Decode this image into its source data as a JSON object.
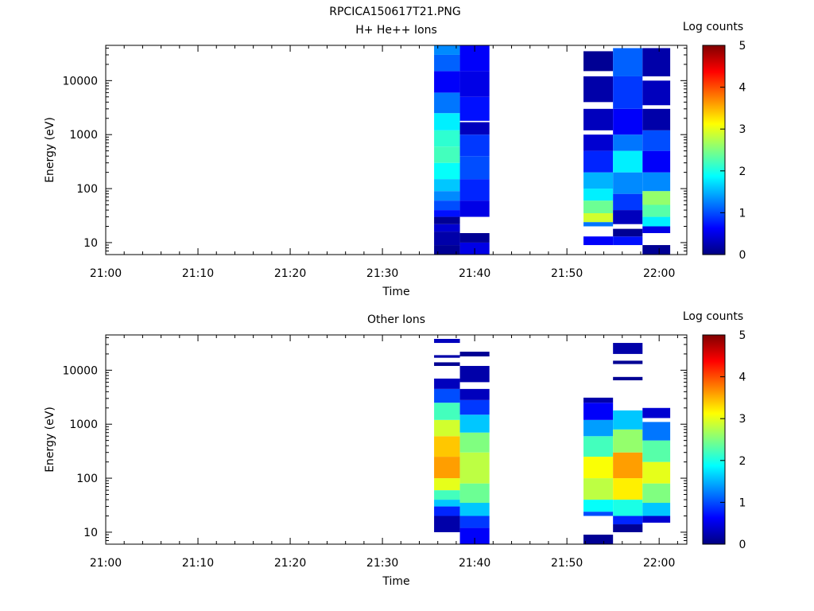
{
  "figure": {
    "filename": "RPCICA150617T21.PNG"
  },
  "colorscale": {
    "stops": [
      "#000080",
      "#0000ff",
      "#0080ff",
      "#00ffff",
      "#80ff80",
      "#ffff00",
      "#ff8000",
      "#ff0000",
      "#800000"
    ]
  },
  "chart_data": [
    {
      "type": "heatmap",
      "title": "H+ He++ Ions",
      "xlabel": "Time",
      "ylabel": "Energy (eV)",
      "colorbar_label": "Log counts",
      "colorbar_range": [
        0,
        5
      ],
      "colorbar_ticks": [
        "0",
        "1",
        "2",
        "3",
        "4",
        "5"
      ],
      "x_ticks": [
        "21:00",
        "21:10",
        "21:20",
        "21:30",
        "21:40",
        "21:50",
        "22:00"
      ],
      "x_range": [
        "21:00",
        "22:03"
      ],
      "y_scale": "log",
      "y_range": [
        6,
        45000
      ],
      "y_ticks": [
        "10",
        "100",
        "1000",
        "10000"
      ],
      "columns": [
        {
          "t_start": "21:35.6",
          "t_end": "21:38.4",
          "bins": [
            {
              "e_min": 6,
              "e_max": 9,
              "value": 0.1
            },
            {
              "e_min": 9,
              "e_max": 16,
              "value": 0.2
            },
            {
              "e_min": 16,
              "e_max": 22,
              "value": 0.4
            },
            {
              "e_min": 22,
              "e_max": 30,
              "value": 0.1
            },
            {
              "e_min": 30,
              "e_max": 40,
              "value": 0.7
            },
            {
              "e_min": 40,
              "e_max": 60,
              "value": 1.0
            },
            {
              "e_min": 60,
              "e_max": 90,
              "value": 1.3
            },
            {
              "e_min": 90,
              "e_max": 150,
              "value": 1.6
            },
            {
              "e_min": 150,
              "e_max": 300,
              "value": 1.9
            },
            {
              "e_min": 300,
              "e_max": 600,
              "value": 2.2
            },
            {
              "e_min": 600,
              "e_max": 1200,
              "value": 2.1
            },
            {
              "e_min": 1200,
              "e_max": 2500,
              "value": 1.8
            },
            {
              "e_min": 2500,
              "e_max": 6000,
              "value": 1.2
            },
            {
              "e_min": 6000,
              "e_max": 15000,
              "value": 0.6
            },
            {
              "e_min": 15000,
              "e_max": 30000,
              "value": 1.1
            },
            {
              "e_min": 30000,
              "e_max": 45000,
              "value": 1.3
            }
          ]
        },
        {
          "t_start": "21:38.4",
          "t_end": "21:41.6",
          "bins": [
            {
              "e_min": 6,
              "e_max": 10,
              "value": 0.5
            },
            {
              "e_min": 10,
              "e_max": 15,
              "value": 0.1
            },
            {
              "e_min": 30,
              "e_max": 60,
              "value": 0.5
            },
            {
              "e_min": 60,
              "e_max": 150,
              "value": 0.8
            },
            {
              "e_min": 150,
              "e_max": 400,
              "value": 1.0
            },
            {
              "e_min": 400,
              "e_max": 1000,
              "value": 0.9
            },
            {
              "e_min": 1000,
              "e_max": 1700,
              "value": 0.3
            },
            {
              "e_min": 1800,
              "e_max": 5000,
              "value": 0.7
            },
            {
              "e_min": 5000,
              "e_max": 15000,
              "value": 0.5
            },
            {
              "e_min": 15000,
              "e_max": 45000,
              "value": 0.6
            }
          ]
        },
        {
          "t_start": "21:51.8",
          "t_end": "21:55.0",
          "bins": [
            {
              "e_min": 9,
              "e_max": 13,
              "value": 0.6
            },
            {
              "e_min": 20,
              "e_max": 24,
              "value": 1.2
            },
            {
              "e_min": 24,
              "e_max": 35,
              "value": 2.9
            },
            {
              "e_min": 35,
              "e_max": 60,
              "value": 2.4
            },
            {
              "e_min": 60,
              "e_max": 100,
              "value": 1.8
            },
            {
              "e_min": 100,
              "e_max": 200,
              "value": 1.5
            },
            {
              "e_min": 200,
              "e_max": 500,
              "value": 0.8
            },
            {
              "e_min": 500,
              "e_max": 1000,
              "value": 0.4
            },
            {
              "e_min": 1200,
              "e_max": 3000,
              "value": 0.3
            },
            {
              "e_min": 4000,
              "e_max": 12000,
              "value": 0.2
            },
            {
              "e_min": 15000,
              "e_max": 35000,
              "value": 0.1
            }
          ]
        },
        {
          "t_start": "21:55.0",
          "t_end": "21:58.2",
          "bins": [
            {
              "e_min": 9,
              "e_max": 13,
              "value": 0.7
            },
            {
              "e_min": 13,
              "e_max": 18,
              "value": 0.1
            },
            {
              "e_min": 22,
              "e_max": 40,
              "value": 0.3
            },
            {
              "e_min": 40,
              "e_max": 80,
              "value": 0.9
            },
            {
              "e_min": 80,
              "e_max": 200,
              "value": 1.3
            },
            {
              "e_min": 200,
              "e_max": 500,
              "value": 1.8
            },
            {
              "e_min": 500,
              "e_max": 1000,
              "value": 1.2
            },
            {
              "e_min": 1000,
              "e_max": 3000,
              "value": 0.6
            },
            {
              "e_min": 3000,
              "e_max": 12000,
              "value": 0.9
            },
            {
              "e_min": 12000,
              "e_max": 40000,
              "value": 1.1
            }
          ]
        },
        {
          "t_start": "21:58.2",
          "t_end": "22:01.2",
          "bins": [
            {
              "e_min": 6,
              "e_max": 9,
              "value": 0.1
            },
            {
              "e_min": 15,
              "e_max": 20,
              "value": 0.5
            },
            {
              "e_min": 20,
              "e_max": 30,
              "value": 1.8
            },
            {
              "e_min": 30,
              "e_max": 50,
              "value": 2.3
            },
            {
              "e_min": 50,
              "e_max": 90,
              "value": 2.6
            },
            {
              "e_min": 90,
              "e_max": 200,
              "value": 1.3
            },
            {
              "e_min": 200,
              "e_max": 500,
              "value": 0.6
            },
            {
              "e_min": 500,
              "e_max": 1200,
              "value": 1.0
            },
            {
              "e_min": 1200,
              "e_max": 3000,
              "value": 0.2
            },
            {
              "e_min": 3500,
              "e_max": 10000,
              "value": 0.3
            },
            {
              "e_min": 12000,
              "e_max": 40000,
              "value": 0.2
            }
          ]
        }
      ]
    },
    {
      "type": "heatmap",
      "title": "Other Ions",
      "xlabel": "Time",
      "ylabel": "Energy (eV)",
      "colorbar_label": "Log counts",
      "colorbar_range": [
        0,
        5
      ],
      "colorbar_ticks": [
        "0",
        "1",
        "2",
        "3",
        "4",
        "5"
      ],
      "x_ticks": [
        "21:00",
        "21:10",
        "21:20",
        "21:30",
        "21:40",
        "21:50",
        "22:00"
      ],
      "x_range": [
        "21:00",
        "22:03"
      ],
      "y_scale": "log",
      "y_range": [
        6,
        45000
      ],
      "y_ticks": [
        "10",
        "100",
        "1000",
        "10000"
      ],
      "columns": [
        {
          "t_start": "21:35.6",
          "t_end": "21:38.4",
          "bins": [
            {
              "e_min": 10,
              "e_max": 20,
              "value": 0.2
            },
            {
              "e_min": 20,
              "e_max": 30,
              "value": 0.8
            },
            {
              "e_min": 30,
              "e_max": 40,
              "value": 1.6
            },
            {
              "e_min": 40,
              "e_max": 60,
              "value": 2.2
            },
            {
              "e_min": 60,
              "e_max": 100,
              "value": 3.0
            },
            {
              "e_min": 100,
              "e_max": 250,
              "value": 3.6
            },
            {
              "e_min": 250,
              "e_max": 600,
              "value": 3.4
            },
            {
              "e_min": 600,
              "e_max": 1200,
              "value": 2.9
            },
            {
              "e_min": 1200,
              "e_max": 2500,
              "value": 2.2
            },
            {
              "e_min": 2500,
              "e_max": 4500,
              "value": 1.0
            },
            {
              "e_min": 4500,
              "e_max": 7000,
              "value": 0.3
            },
            {
              "e_min": 12000,
              "e_max": 14000,
              "value": 0.1
            },
            {
              "e_min": 17000,
              "e_max": 19000,
              "value": 0.2
            },
            {
              "e_min": 32000,
              "e_max": 38000,
              "value": 0.3
            }
          ]
        },
        {
          "t_start": "21:38.4",
          "t_end": "21:41.6",
          "bins": [
            {
              "e_min": 6,
              "e_max": 12,
              "value": 0.6
            },
            {
              "e_min": 12,
              "e_max": 20,
              "value": 0.9
            },
            {
              "e_min": 20,
              "e_max": 35,
              "value": 1.6
            },
            {
              "e_min": 35,
              "e_max": 80,
              "value": 2.4
            },
            {
              "e_min": 80,
              "e_max": 300,
              "value": 2.8
            },
            {
              "e_min": 300,
              "e_max": 700,
              "value": 2.5
            },
            {
              "e_min": 700,
              "e_max": 1500,
              "value": 1.6
            },
            {
              "e_min": 1500,
              "e_max": 2800,
              "value": 0.9
            },
            {
              "e_min": 2800,
              "e_max": 4500,
              "value": 0.3
            },
            {
              "e_min": 6000,
              "e_max": 12000,
              "value": 0.2
            },
            {
              "e_min": 18000,
              "e_max": 22000,
              "value": 0.1
            }
          ]
        },
        {
          "t_start": "21:51.8",
          "t_end": "21:55.0",
          "bins": [
            {
              "e_min": 6,
              "e_max": 9,
              "value": 0.1
            },
            {
              "e_min": 20,
              "e_max": 24,
              "value": 1.0
            },
            {
              "e_min": 24,
              "e_max": 40,
              "value": 1.9
            },
            {
              "e_min": 40,
              "e_max": 100,
              "value": 2.8
            },
            {
              "e_min": 100,
              "e_max": 250,
              "value": 3.1
            },
            {
              "e_min": 250,
              "e_max": 600,
              "value": 2.2
            },
            {
              "e_min": 600,
              "e_max": 1200,
              "value": 1.4
            },
            {
              "e_min": 1200,
              "e_max": 2500,
              "value": 0.6
            },
            {
              "e_min": 2500,
              "e_max": 3100,
              "value": 0.2
            }
          ]
        },
        {
          "t_start": "21:55.0",
          "t_end": "21:58.2",
          "bins": [
            {
              "e_min": 10,
              "e_max": 14,
              "value": 0.1
            },
            {
              "e_min": 14,
              "e_max": 20,
              "value": 0.8
            },
            {
              "e_min": 20,
              "e_max": 40,
              "value": 2.0
            },
            {
              "e_min": 40,
              "e_max": 100,
              "value": 3.2
            },
            {
              "e_min": 100,
              "e_max": 300,
              "value": 3.6
            },
            {
              "e_min": 300,
              "e_max": 800,
              "value": 2.6
            },
            {
              "e_min": 800,
              "e_max": 1800,
              "value": 1.6
            },
            {
              "e_min": 6500,
              "e_max": 7500,
              "value": 0.1
            },
            {
              "e_min": 13000,
              "e_max": 15000,
              "value": 0.1
            },
            {
              "e_min": 20000,
              "e_max": 32000,
              "value": 0.2
            }
          ]
        },
        {
          "t_start": "21:58.2",
          "t_end": "22:01.2",
          "bins": [
            {
              "e_min": 15,
              "e_max": 20,
              "value": 0.4
            },
            {
              "e_min": 20,
              "e_max": 35,
              "value": 1.6
            },
            {
              "e_min": 35,
              "e_max": 80,
              "value": 2.5
            },
            {
              "e_min": 80,
              "e_max": 200,
              "value": 3.0
            },
            {
              "e_min": 200,
              "e_max": 500,
              "value": 2.3
            },
            {
              "e_min": 500,
              "e_max": 1100,
              "value": 1.2
            },
            {
              "e_min": 1300,
              "e_max": 2000,
              "value": 0.4
            }
          ]
        }
      ]
    }
  ]
}
